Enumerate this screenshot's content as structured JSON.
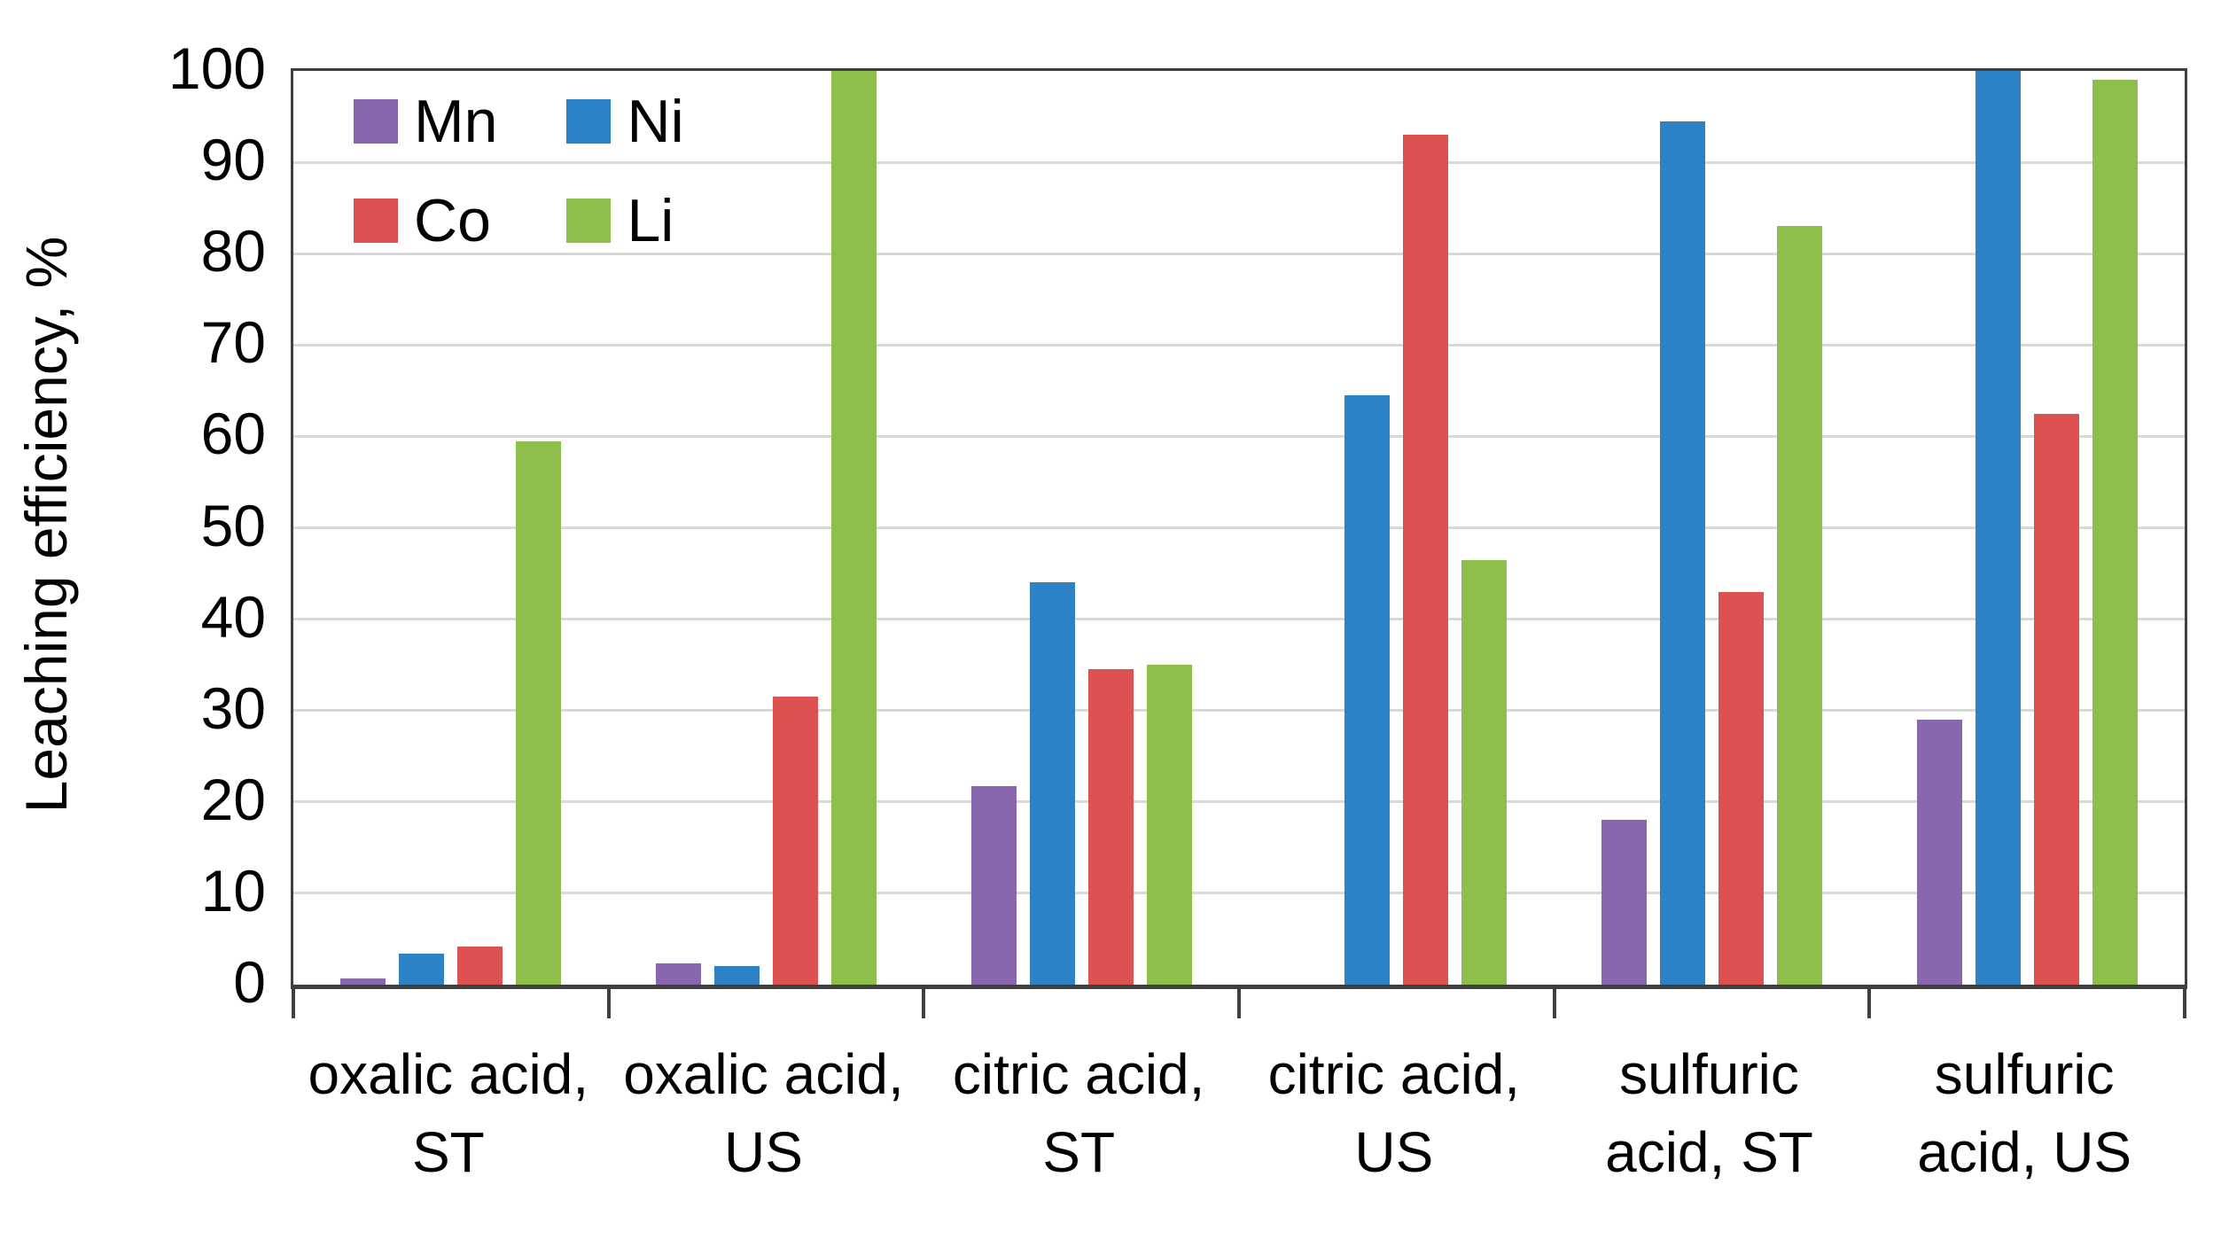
{
  "chart_data": {
    "type": "bar",
    "title": "",
    "xlabel": "",
    "ylabel": "Leaching efficiency, %",
    "ylim": [
      0,
      100
    ],
    "ytick_step": 10,
    "yticks": [
      0,
      10,
      20,
      30,
      40,
      50,
      60,
      70,
      80,
      90,
      100
    ],
    "grid": true,
    "legend_position": "top-left-inside",
    "categories": [
      {
        "line1": "oxalic acid,",
        "line2": "ST"
      },
      {
        "line1": "oxalic acid,",
        "line2": "US"
      },
      {
        "line1": "citric acid,",
        "line2": "ST"
      },
      {
        "line1": "citric acid,",
        "line2": "US"
      },
      {
        "line1": "sulfuric",
        "line2": "acid, ST"
      },
      {
        "line1": "sulfuric",
        "line2": "acid, US"
      }
    ],
    "series": [
      {
        "name": "Mn",
        "color": "#8768ae",
        "values": [
          0.7,
          2.3,
          21.7,
          0,
          18,
          29
        ]
      },
      {
        "name": "Ni",
        "color": "#2d82c5",
        "values": [
          3.4,
          2.0,
          44,
          64.5,
          94.5,
          100
        ]
      },
      {
        "name": "Co",
        "color": "#dd5151",
        "values": [
          4.2,
          31.5,
          34.5,
          93,
          43,
          62.5
        ]
      },
      {
        "name": "Li",
        "color": "#8ebf4c",
        "values": [
          59.5,
          100,
          35,
          46.5,
          83,
          99
        ]
      }
    ],
    "colors": {
      "grid": "#d9d9d9",
      "axis": "#3f3f3f"
    }
  }
}
